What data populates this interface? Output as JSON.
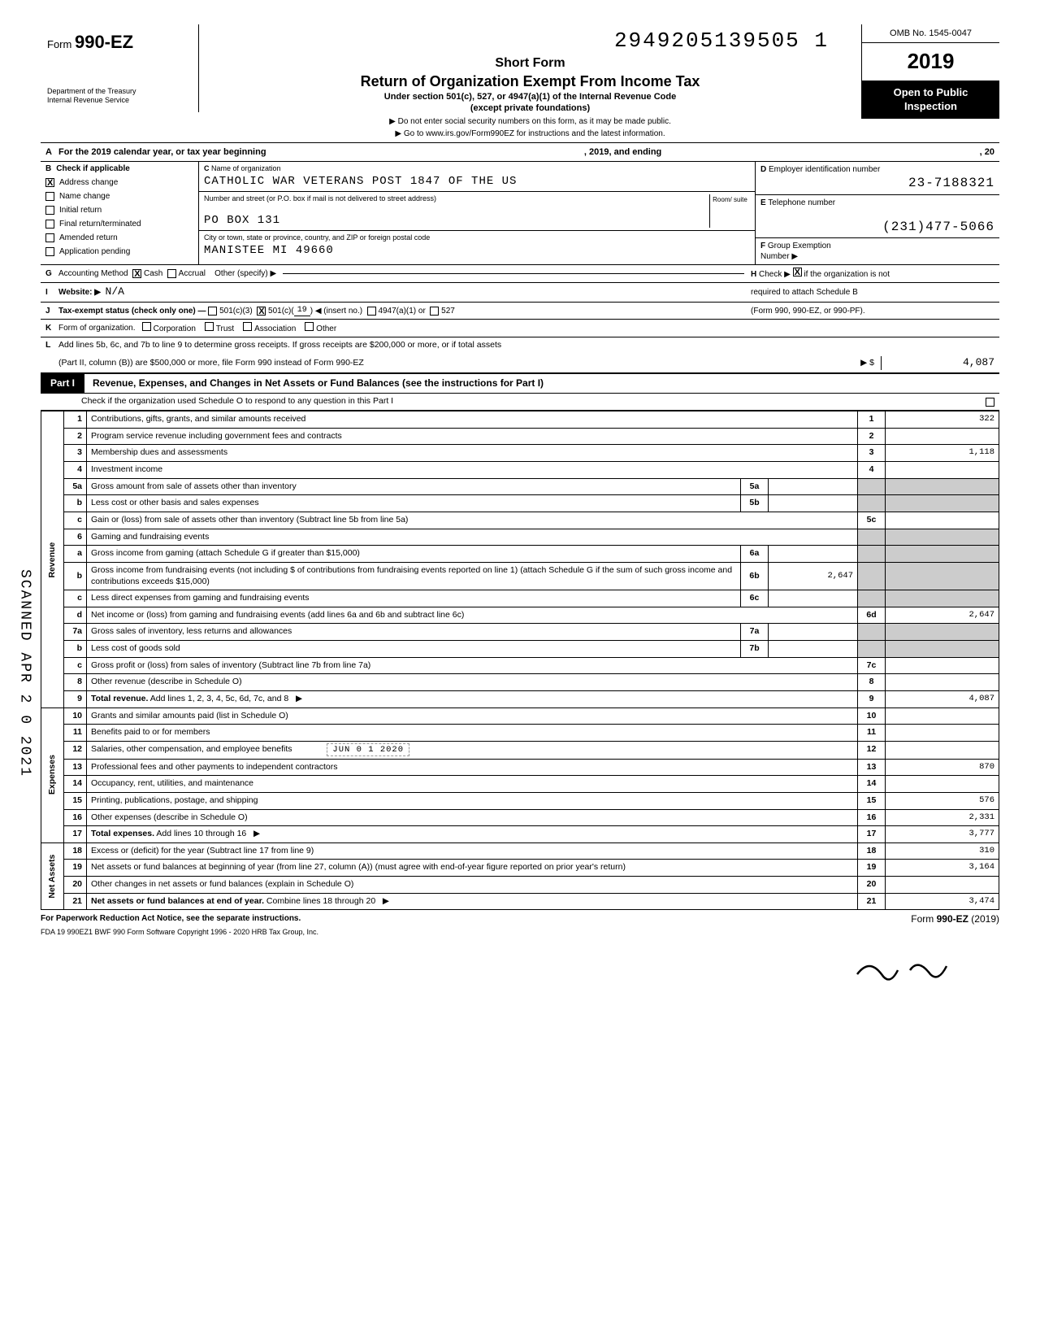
{
  "header": {
    "form_label": "Form",
    "form_number": "990-EZ",
    "dept1": "Department of the Treasury",
    "dept2": "Internal Revenue Service",
    "stamp_number": "2949205139505  1",
    "short_form": "Short Form",
    "main_title": "Return of Organization Exempt From Income Tax",
    "subtitle": "Under section 501(c), 527, or 4947(a)(1) of the Internal Revenue Code",
    "subtitle2": "(except private foundations)",
    "instr1": "▶ Do not enter social security numbers on this form, as it may be made public.",
    "instr2": "▶ Go to www.irs.gov/Form990EZ for instructions and the latest information.",
    "omb": "OMB No. 1545-0047",
    "year": "2019",
    "open1": "Open to Public",
    "open2": "Inspection",
    "side_stamp": "SCANNED APR 2 0 2021",
    "signature_svg": true
  },
  "line_a": {
    "lead": "A",
    "text_l": "For the 2019 calendar year, or tax year beginning",
    "text_m": ", 2019, and ending",
    "text_r": ", 20"
  },
  "block_b": {
    "lead": "B",
    "title": "Check if applicable",
    "items": [
      {
        "label": "Address change",
        "checked": true
      },
      {
        "label": "Name change",
        "checked": false
      },
      {
        "label": "Initial return",
        "checked": false
      },
      {
        "label": "Final return/terminated",
        "checked": false
      },
      {
        "label": "Amended return",
        "checked": false
      },
      {
        "label": "Application pending",
        "checked": false
      }
    ]
  },
  "block_c": {
    "lead": "C",
    "title": "Name of organization",
    "name": "CATHOLIC WAR VETERANS POST 1847 OF THE US",
    "street_label": "Number and street (or P.O. box if mail is not delivered to street address)",
    "room_label": "Room/\nsuite",
    "street": "PO BOX 131",
    "city_label": "City or town, state or province, country, and ZIP or foreign postal code",
    "city": "MANISTEE MI  49660"
  },
  "block_d": {
    "lead": "D",
    "title": "Employer identification number",
    "ein": "23-7188321",
    "e_lead": "E",
    "e_title": "Telephone number",
    "phone": "(231)477-5066",
    "f_lead": "F",
    "f_title": "Group Exemption",
    "f_sub": "Number  ▶"
  },
  "row_g": {
    "lead": "G",
    "label": "Accounting Method",
    "cash": "Cash",
    "accrual": "Accrual",
    "other": "Other (specify) ▶",
    "h_lead": "H",
    "h_text": "Check ▶",
    "h_tail": "if the organization is not"
  },
  "row_i": {
    "lead": "I",
    "label": "Website: ▶",
    "value": "N/A",
    "tail": "required to attach Schedule B"
  },
  "row_j": {
    "lead": "J",
    "label": "Tax-exempt status (check only one) —",
    "c3": "501(c)(3)",
    "cx_pre": "501(c)(",
    "cx_num": "19",
    "cx_post": ") ◀ (insert no.)",
    "a1": "4947(a)(1) or",
    "527": "527",
    "tail": "(Form 990, 990-EZ, or 990-PF)."
  },
  "row_k": {
    "lead": "K",
    "label": "Form of organization.",
    "opts": [
      "Corporation",
      "Trust",
      "Association",
      "Other"
    ]
  },
  "row_l": {
    "lead": "L",
    "text1": "Add lines 5b, 6c, and 7b to line 9 to determine gross receipts. If gross receipts are $200,000 or more, or if total assets",
    "text2": "(Part II, column (B)) are $500,000 or more, file Form 990 instead of Form 990-EZ",
    "arrow": "▶  $",
    "amount": "4,087"
  },
  "part1": {
    "tag": "Part I",
    "title": "Revenue, Expenses, and Changes in Net Assets or Fund Balances (see the instructions for Part I)",
    "check_line": "Check if the organization used Schedule O to respond to any question in this Part I"
  },
  "sections": {
    "revenue_label": "Revenue",
    "expenses_label": "Expenses",
    "netassets_label": "Net Assets"
  },
  "lines": [
    {
      "sec": "rev",
      "n": "1",
      "desc": "Contributions, gifts, grants, and similar amounts received",
      "box": "1",
      "amt": "322"
    },
    {
      "sec": "rev",
      "n": "2",
      "desc": "Program service revenue including government fees and contracts",
      "box": "2",
      "amt": ""
    },
    {
      "sec": "rev",
      "n": "3",
      "desc": "Membership dues and assessments",
      "box": "3",
      "amt": "1,118"
    },
    {
      "sec": "rev",
      "n": "4",
      "desc": "Investment income",
      "box": "4",
      "amt": ""
    },
    {
      "sec": "rev",
      "n": "5a",
      "desc": "Gross amount from sale of assets other than inventory",
      "mid_box": "5a",
      "mid_amt": "",
      "shade_right": true
    },
    {
      "sec": "rev",
      "n": "b",
      "desc": "Less cost or other basis and sales expenses",
      "mid_box": "5b",
      "mid_amt": "",
      "shade_right": true
    },
    {
      "sec": "rev",
      "n": "c",
      "desc": "Gain or (loss) from sale of assets other than inventory (Subtract line 5b from line 5a)",
      "box": "5c",
      "amt": ""
    },
    {
      "sec": "rev",
      "n": "6",
      "desc": "Gaming and fundraising events",
      "shade_right": true,
      "no_box": true
    },
    {
      "sec": "rev",
      "n": "a",
      "desc": "Gross income from gaming (attach Schedule G if greater than $15,000)",
      "mid_box": "6a",
      "mid_amt": "",
      "shade_right": true
    },
    {
      "sec": "rev",
      "n": "b",
      "desc": "Gross income from fundraising events (not including  $                            of contributions from fundraising events reported on line 1) (attach Schedule G if the sum of such gross income and contributions exceeds $15,000)",
      "mid_box": "6b",
      "mid_amt": "2,647",
      "shade_right": true
    },
    {
      "sec": "rev",
      "n": "c",
      "desc": "Less direct expenses from gaming and fundraising events",
      "mid_box": "6c",
      "mid_amt": "",
      "shade_right": true
    },
    {
      "sec": "rev",
      "n": "d",
      "desc": "Net income or (loss) from gaming and fundraising events (add lines 6a and 6b and subtract line 6c)",
      "box": "6d",
      "amt": "2,647"
    },
    {
      "sec": "rev",
      "n": "7a",
      "desc": "Gross sales of inventory, less returns and allowances",
      "mid_box": "7a",
      "mid_amt": "",
      "shade_right": true
    },
    {
      "sec": "rev",
      "n": "b",
      "desc": "Less cost of goods sold",
      "mid_box": "7b",
      "mid_amt": "",
      "shade_right": true
    },
    {
      "sec": "rev",
      "n": "c",
      "desc": "Gross profit or (loss) from sales of inventory (Subtract line 7b from line 7a)",
      "box": "7c",
      "amt": ""
    },
    {
      "sec": "rev",
      "n": "8",
      "desc": "Other revenue (describe in Schedule O)",
      "box": "8",
      "amt": ""
    },
    {
      "sec": "rev",
      "n": "9",
      "desc": "Total revenue. Add lines 1, 2, 3, 4, 5c, 6d, 7c, and 8",
      "arrow": "▶",
      "box": "9",
      "amt": "4,087",
      "bold": true
    },
    {
      "sec": "exp",
      "n": "10",
      "desc": "Grants and similar amounts paid (list in Schedule O)",
      "box": "10",
      "amt": ""
    },
    {
      "sec": "exp",
      "n": "11",
      "desc": "Benefits paid to or for members",
      "box": "11",
      "amt": ""
    },
    {
      "sec": "exp",
      "n": "12",
      "desc": "Salaries, other compensation, and employee benefits",
      "box": "12",
      "amt": "",
      "stamp": "JUN 0 1 2020"
    },
    {
      "sec": "exp",
      "n": "13",
      "desc": "Professional fees and other payments to independent contractors",
      "box": "13",
      "amt": "870"
    },
    {
      "sec": "exp",
      "n": "14",
      "desc": "Occupancy, rent, utilities, and maintenance",
      "box": "14",
      "amt": ""
    },
    {
      "sec": "exp",
      "n": "15",
      "desc": "Printing, publications, postage, and shipping",
      "box": "15",
      "amt": "576"
    },
    {
      "sec": "exp",
      "n": "16",
      "desc": "Other expenses (describe in Schedule O)",
      "box": "16",
      "amt": "2,331"
    },
    {
      "sec": "exp",
      "n": "17",
      "desc": "Total expenses. Add lines 10 through 16",
      "arrow": "▶",
      "box": "17",
      "amt": "3,777",
      "bold": true
    },
    {
      "sec": "net",
      "n": "18",
      "desc": "Excess or (deficit) for the year (Subtract line 17 from line 9)",
      "box": "18",
      "amt": "310"
    },
    {
      "sec": "net",
      "n": "19",
      "desc": "Net assets or fund balances at beginning of year (from line 27, column (A)) (must agree with end-of-year figure reported on prior year's return)",
      "box": "19",
      "amt": "3,164"
    },
    {
      "sec": "net",
      "n": "20",
      "desc": "Other changes in net assets or fund balances (explain in Schedule O)",
      "box": "20",
      "amt": ""
    },
    {
      "sec": "net",
      "n": "21",
      "desc": "Net assets or fund balances at end of year. Combine lines 18 through 20",
      "arrow": "▶",
      "box": "21",
      "amt": "3,474"
    }
  ],
  "footer": {
    "left": "For Paperwork Reduction Act Notice, see the separate instructions.",
    "right": "Form 990-EZ (2019)",
    "line2": "FDA     19   990EZ1      BWF 990      Form Software Copyright 1996 - 2020 HRB Tax Group, Inc."
  },
  "colors": {
    "black": "#000000",
    "white": "#ffffff",
    "shade": "#cccccc"
  }
}
